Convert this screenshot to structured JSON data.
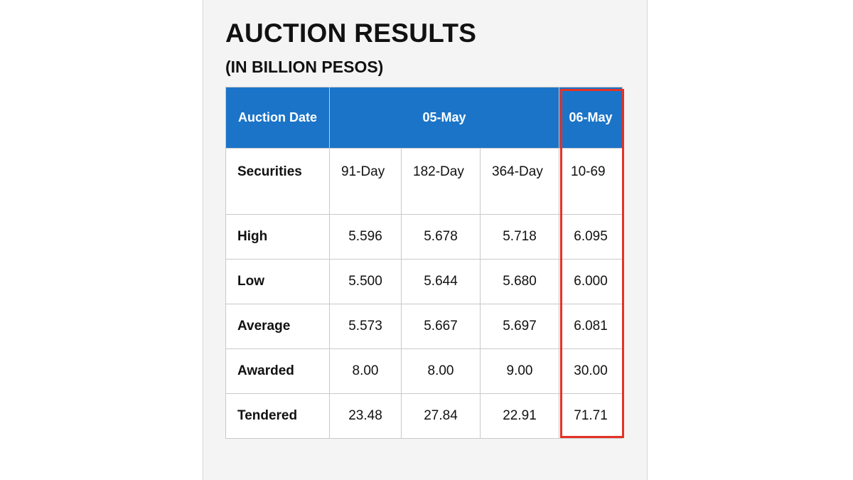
{
  "title": "AUCTION RESULTS",
  "subtitle": "(IN BILLION PESOS)",
  "colors": {
    "header_bg": "#1b74c8",
    "highlight_border": "#e53225"
  },
  "table": {
    "header": {
      "label": "Auction Date",
      "date_1": "05-May",
      "date_2": "06-May"
    },
    "securities": {
      "label": "Securities",
      "values": [
        "91-Day",
        "182-Day",
        "364-Day",
        "10-69"
      ]
    },
    "rows": [
      {
        "label": "High",
        "values": [
          "5.596",
          "5.678",
          "5.718",
          "6.095"
        ]
      },
      {
        "label": "Low",
        "values": [
          "5.500",
          "5.644",
          "5.680",
          "6.000"
        ]
      },
      {
        "label": "Average",
        "values": [
          "5.573",
          "5.667",
          "5.697",
          "6.081"
        ]
      },
      {
        "label": "Awarded",
        "values": [
          "8.00",
          "8.00",
          "9.00",
          "30.00"
        ]
      },
      {
        "label": "Tendered",
        "values": [
          "23.48",
          "27.84",
          "22.91",
          "71.71"
        ]
      }
    ]
  }
}
